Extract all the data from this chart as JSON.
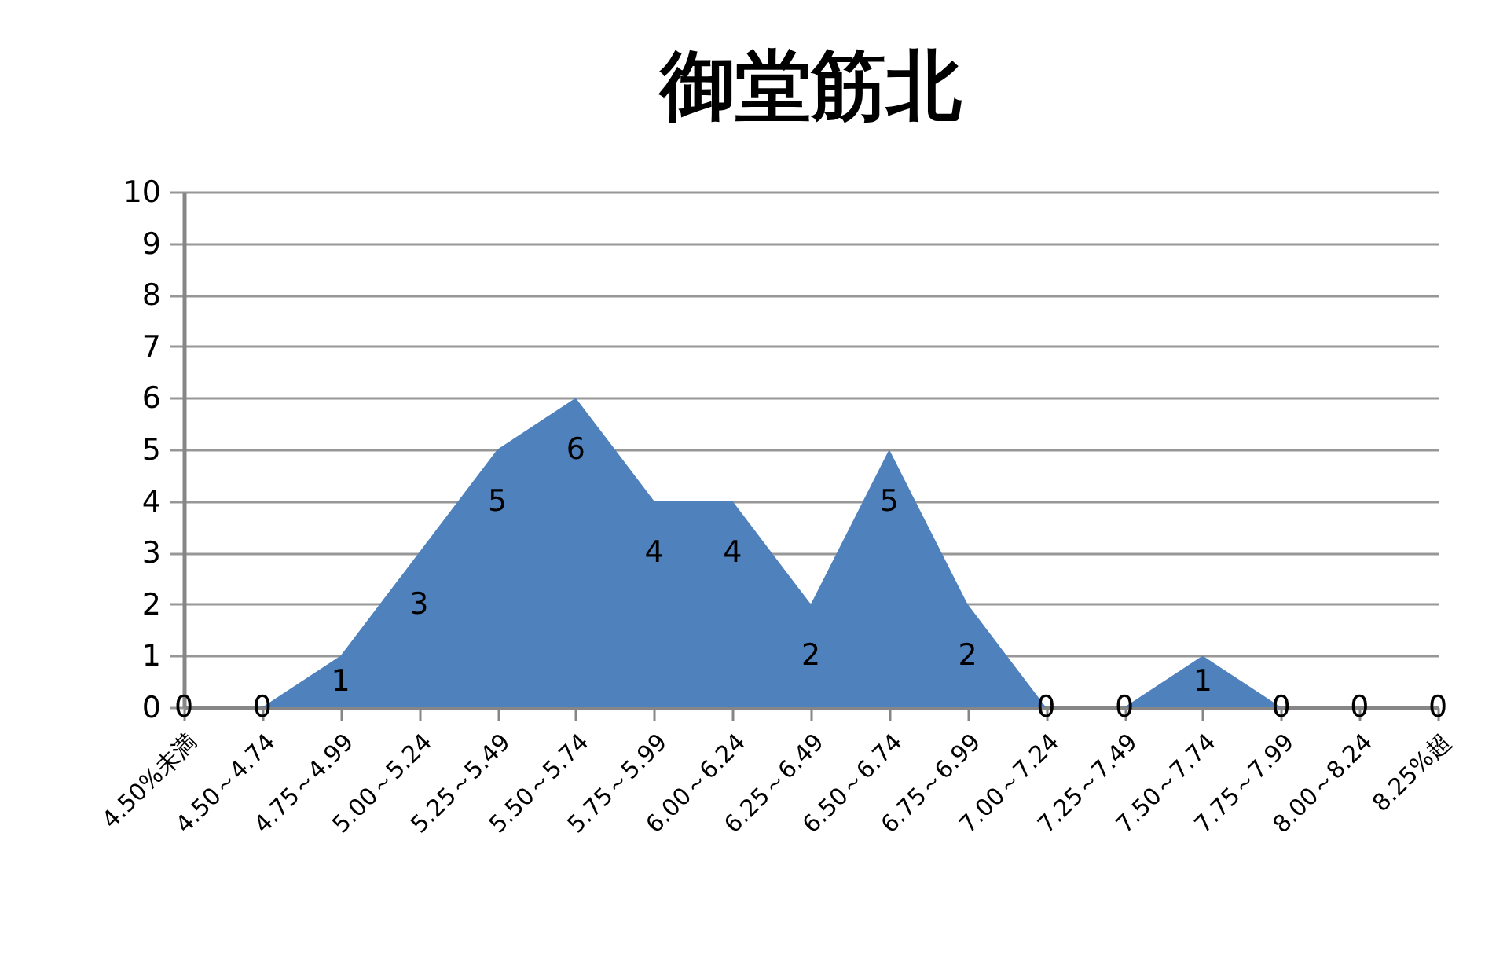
{
  "chart_data": {
    "type": "area",
    "title": "御堂筋北",
    "categories": [
      "4.50%未満",
      "4.50～4.74",
      "4.75～4.99",
      "5.00～5.24",
      "5.25～5.49",
      "5.50～5.74",
      "5.75～5.99",
      "6.00～6.24",
      "6.25～6.49",
      "6.50～6.74",
      "6.75～6.99",
      "7.00～7.24",
      "7.25～7.49",
      "7.50～7.74",
      "7.75～7.99",
      "8.00～8.24",
      "8.25%超"
    ],
    "values": [
      0,
      0,
      1,
      3,
      5,
      6,
      4,
      4,
      2,
      5,
      2,
      0,
      0,
      1,
      0,
      0,
      0
    ],
    "color": "#4f81bd",
    "ylim": [
      0,
      10
    ],
    "yticks": [
      0,
      1,
      2,
      3,
      4,
      5,
      6,
      7,
      8,
      9,
      10
    ],
    "grid": "y",
    "data_labels": true
  }
}
